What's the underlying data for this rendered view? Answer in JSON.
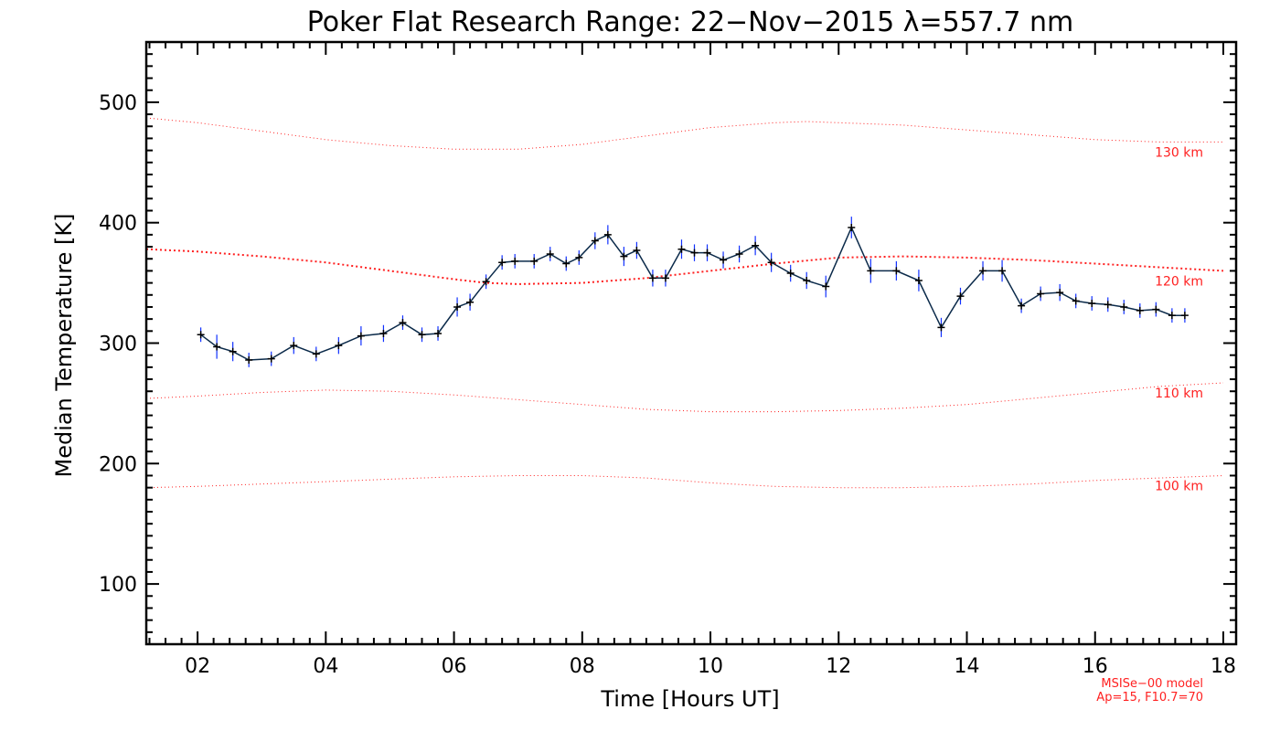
{
  "chart_data": {
    "type": "line",
    "title": "Poker Flat Research Range: 22−Nov−2015 λ=557.7 nm",
    "xlabel": "Time [Hours UT]",
    "ylabel": "Median Temperature [K]",
    "xlim": [
      1.2,
      18.2
    ],
    "ylim": [
      50,
      550
    ],
    "x_ticks": [
      2,
      4,
      6,
      8,
      10,
      12,
      14,
      16,
      18
    ],
    "x_tick_labels": [
      "02",
      "04",
      "06",
      "08",
      "10",
      "12",
      "14",
      "16",
      "18"
    ],
    "y_ticks": [
      100,
      200,
      300,
      400,
      500
    ],
    "y_tick_labels": [
      "100",
      "200",
      "300",
      "400",
      "500"
    ],
    "grid": false,
    "series": [
      {
        "color": "#0b2a4a",
        "error_color": "#1030ff",
        "x": [
          2.05,
          2.3,
          2.55,
          2.8,
          3.15,
          3.5,
          3.85,
          4.2,
          4.55,
          4.9,
          5.2,
          5.5,
          5.75,
          6.05,
          6.25,
          6.5,
          6.75,
          6.95,
          7.25,
          7.5,
          7.75,
          7.95,
          8.2,
          8.4,
          8.65,
          8.85,
          9.1,
          9.3,
          9.55,
          9.75,
          9.95,
          10.2,
          10.45,
          10.7,
          10.95,
          11.25,
          11.5,
          11.8,
          12.2,
          12.5,
          12.9,
          13.25,
          13.6,
          13.9,
          14.25,
          14.55,
          14.85,
          15.15,
          15.45,
          15.7,
          15.95,
          16.2,
          16.45,
          16.7,
          16.95,
          17.2,
          17.4
        ],
        "y": [
          307,
          297,
          293,
          286,
          287,
          298,
          291,
          298,
          306,
          308,
          317,
          307,
          308,
          330,
          334,
          351,
          367,
          368,
          368,
          374,
          366,
          371,
          385,
          390,
          372,
          377,
          354,
          354,
          378,
          375,
          375,
          369,
          374,
          381,
          367,
          358,
          352,
          347,
          396,
          360,
          360,
          352,
          313,
          339,
          360,
          360,
          331,
          341,
          342,
          335,
          333,
          332,
          330,
          327,
          328,
          323,
          323
        ],
        "err": [
          6,
          10,
          8,
          6,
          6,
          7,
          6,
          7,
          8,
          7,
          6,
          6,
          6,
          8,
          7,
          6,
          6,
          6,
          6,
          6,
          6,
          6,
          7,
          8,
          8,
          7,
          7,
          7,
          8,
          7,
          7,
          7,
          7,
          8,
          8,
          7,
          7,
          9,
          9,
          10,
          8,
          9,
          8,
          7,
          8,
          9,
          6,
          6,
          7,
          6,
          6,
          6,
          6,
          6,
          6,
          6,
          6
        ]
      }
    ],
    "model_curves": [
      {
        "label": "130 km",
        "color": "#ff2020",
        "x": [
          1.2,
          2,
          3,
          4,
          5,
          6,
          7,
          8,
          9,
          10,
          11,
          11.5,
          12,
          13,
          14,
          15,
          16,
          17,
          18
        ],
        "y": [
          487,
          483,
          476,
          469,
          464,
          461,
          461,
          465,
          472,
          479,
          483,
          484,
          483,
          481,
          477,
          473,
          469,
          467,
          467
        ]
      },
      {
        "label": "120 km",
        "color": "#ff2020",
        "x": [
          1.2,
          2,
          3,
          4,
          5,
          6,
          6.5,
          7,
          8,
          9,
          10,
          11,
          12,
          13,
          14,
          15,
          16,
          17,
          18
        ],
        "y": [
          378,
          376,
          372,
          367,
          360,
          353,
          350,
          349,
          350,
          354,
          360,
          366,
          371,
          372,
          371,
          369,
          366,
          363,
          360
        ]
      },
      {
        "label": "110 km",
        "color": "#ff2020",
        "x": [
          1.2,
          2,
          3,
          4,
          5,
          6,
          7,
          8,
          9,
          10,
          11,
          12,
          13,
          14,
          15,
          16,
          17,
          18
        ],
        "y": [
          254,
          256,
          259,
          261,
          260,
          257,
          253,
          249,
          245,
          243,
          243,
          244,
          246,
          249,
          254,
          259,
          264,
          267
        ]
      },
      {
        "label": "100 km",
        "color": "#ff2020",
        "x": [
          1.2,
          2,
          3,
          4,
          5,
          6,
          7,
          8,
          9,
          10,
          11,
          12,
          13,
          14,
          15,
          16,
          17,
          18
        ],
        "y": [
          180,
          181,
          183,
          185,
          187,
          189,
          190,
          190,
          188,
          184,
          181,
          180,
          180,
          181,
          183,
          186,
          188,
          190
        ]
      }
    ],
    "annotations": {
      "model_name": "MSISe−00 model",
      "model_params": "Ap=15, F10.7=70"
    }
  }
}
